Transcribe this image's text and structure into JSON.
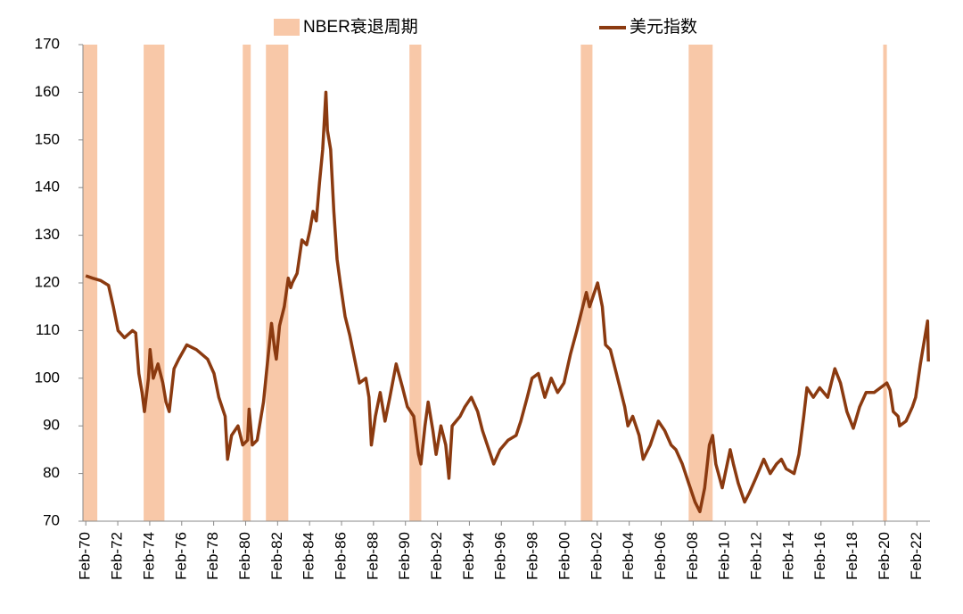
{
  "chart_data": {
    "type": "line",
    "recessions": {
      "name": "NBER衰退周期",
      "color": "#f8c8a8",
      "ranges": [
        [
          1969.9,
          1970.8
        ],
        [
          1973.7,
          1975.0
        ],
        [
          1979.9,
          1980.4
        ],
        [
          1981.35,
          1982.75
        ],
        [
          1990.33,
          1991.07
        ],
        [
          2001.05,
          2001.78
        ],
        [
          2007.8,
          2009.3
        ],
        [
          2019.97,
          2020.2
        ]
      ]
    },
    "x": [
      1970.08,
      1970.5,
      1971.0,
      1971.5,
      1971.8,
      1972.1,
      1972.5,
      1973.0,
      1973.2,
      1973.4,
      1973.6,
      1973.75,
      1974.0,
      1974.1,
      1974.3,
      1974.6,
      1974.9,
      1975.1,
      1975.3,
      1975.6,
      1975.9,
      1976.4,
      1977.0,
      1977.7,
      1978.1,
      1978.4,
      1978.8,
      1978.95,
      1979.2,
      1979.6,
      1979.9,
      1980.2,
      1980.3,
      1980.5,
      1980.8,
      1981.2,
      1981.5,
      1981.7,
      1981.9,
      1982.0,
      1982.2,
      1982.5,
      1982.75,
      1982.9,
      1983.0,
      1983.3,
      1983.6,
      1983.9,
      1984.1,
      1984.3,
      1984.5,
      1984.7,
      1984.9,
      1985.1,
      1985.2,
      1985.4,
      1985.6,
      1985.8,
      1986.0,
      1986.3,
      1986.6,
      1986.9,
      1987.2,
      1987.6,
      1987.8,
      1987.95,
      1988.2,
      1988.5,
      1988.8,
      1989.1,
      1989.5,
      1989.9,
      1990.2,
      1990.6,
      1990.9,
      1991.05,
      1991.3,
      1991.5,
      1991.8,
      1992.0,
      1992.3,
      1992.6,
      1992.8,
      1993.0,
      1993.5,
      1993.8,
      1994.2,
      1994.6,
      1994.9,
      1995.3,
      1995.6,
      1996.0,
      1996.5,
      1997.0,
      1997.3,
      1997.7,
      1998.0,
      1998.4,
      1998.8,
      1999.2,
      1999.6,
      2000.0,
      2000.4,
      2000.8,
      2001.1,
      2001.4,
      2001.6,
      2001.9,
      2002.1,
      2002.4,
      2002.6,
      2002.9,
      2003.2,
      2003.5,
      2003.8,
      2004.0,
      2004.3,
      2004.7,
      2004.95,
      2005.4,
      2005.9,
      2006.3,
      2006.7,
      2007.0,
      2007.4,
      2007.8,
      2008.2,
      2008.5,
      2008.8,
      2009.1,
      2009.3,
      2009.5,
      2009.9,
      2010.4,
      2010.6,
      2010.9,
      2011.3,
      2011.6,
      2012.0,
      2012.5,
      2012.9,
      2013.3,
      2013.6,
      2013.9,
      2014.4,
      2014.7,
      2015.0,
      2015.2,
      2015.6,
      2016.0,
      2016.5,
      2016.95,
      2017.3,
      2017.7,
      2018.1,
      2018.5,
      2018.9,
      2019.4,
      2019.8,
      2020.2,
      2020.4,
      2020.6,
      2020.9,
      2021.0,
      2021.4,
      2021.8,
      2022.0,
      2022.3,
      2022.6,
      2022.75,
      2022.8
    ],
    "series": [
      {
        "name": "美元指数",
        "color": "#8b3a10",
        "values": [
          121.5,
          121,
          120.5,
          119.5,
          115,
          110,
          108.5,
          110,
          109.5,
          101,
          97,
          93,
          100,
          106,
          100,
          103,
          99,
          95,
          93,
          102,
          104,
          107,
          106,
          104,
          101,
          96,
          92,
          83,
          88,
          90,
          86,
          87,
          93.5,
          86,
          87,
          95,
          105,
          111.5,
          106,
          104,
          111,
          115,
          121,
          119,
          120,
          122,
          129,
          128,
          131,
          135,
          133,
          141,
          148,
          160,
          152,
          148,
          135,
          125,
          120,
          113,
          109,
          104,
          99,
          100,
          96,
          86,
          92,
          97,
          91,
          96,
          103,
          98,
          94,
          92,
          84,
          82,
          90,
          95,
          89,
          84,
          90,
          86,
          79,
          90,
          92,
          94,
          96,
          93,
          89,
          85,
          82,
          85,
          87,
          88,
          91,
          96,
          100,
          101,
          96,
          100,
          97,
          99,
          105,
          110,
          114,
          118,
          115,
          118,
          120,
          115,
          107,
          106,
          102,
          98,
          94,
          90,
          92,
          88,
          83,
          86,
          91,
          89,
          86,
          85,
          82,
          78,
          74,
          72,
          77,
          86,
          88,
          82,
          77,
          85,
          82,
          78,
          74,
          76,
          79,
          83,
          80,
          82,
          83,
          81,
          80,
          84,
          92,
          98,
          96,
          98,
          96,
          102,
          99,
          93,
          89.5,
          94,
          97,
          97,
          98,
          99,
          97.5,
          93,
          92,
          90,
          91,
          94,
          96,
          103,
          109,
          112,
          103.5
        ]
      }
    ],
    "xlim": [
      1969.9,
      2022.9
    ],
    "xticks": [
      {
        "value": 1970.08,
        "label": "Feb-70"
      },
      {
        "value": 1972.08,
        "label": "Feb-72"
      },
      {
        "value": 1974.08,
        "label": "Feb-74"
      },
      {
        "value": 1976.08,
        "label": "Feb-76"
      },
      {
        "value": 1978.08,
        "label": "Feb-78"
      },
      {
        "value": 1980.08,
        "label": "Feb-80"
      },
      {
        "value": 1982.08,
        "label": "Feb-82"
      },
      {
        "value": 1984.08,
        "label": "Feb-84"
      },
      {
        "value": 1986.08,
        "label": "Feb-86"
      },
      {
        "value": 1988.08,
        "label": "Feb-88"
      },
      {
        "value": 1990.08,
        "label": "Feb-90"
      },
      {
        "value": 1992.08,
        "label": "Feb-92"
      },
      {
        "value": 1994.08,
        "label": "Feb-94"
      },
      {
        "value": 1996.08,
        "label": "Feb-96"
      },
      {
        "value": 1998.08,
        "label": "Feb-98"
      },
      {
        "value": 2000.08,
        "label": "Feb-00"
      },
      {
        "value": 2002.08,
        "label": "Feb-02"
      },
      {
        "value": 2004.08,
        "label": "Feb-04"
      },
      {
        "value": 2006.08,
        "label": "Feb-06"
      },
      {
        "value": 2008.08,
        "label": "Feb-08"
      },
      {
        "value": 2010.08,
        "label": "Feb-10"
      },
      {
        "value": 2012.08,
        "label": "Feb-12"
      },
      {
        "value": 2014.08,
        "label": "Feb-14"
      },
      {
        "value": 2016.08,
        "label": "Feb-16"
      },
      {
        "value": 2018.08,
        "label": "Feb-18"
      },
      {
        "value": 2020.08,
        "label": "Feb-20"
      },
      {
        "value": 2022.08,
        "label": "Feb-22"
      }
    ],
    "ylim": [
      70,
      170
    ],
    "yticks": [
      70,
      80,
      90,
      100,
      110,
      120,
      130,
      140,
      150,
      160,
      170
    ],
    "grid": false
  }
}
